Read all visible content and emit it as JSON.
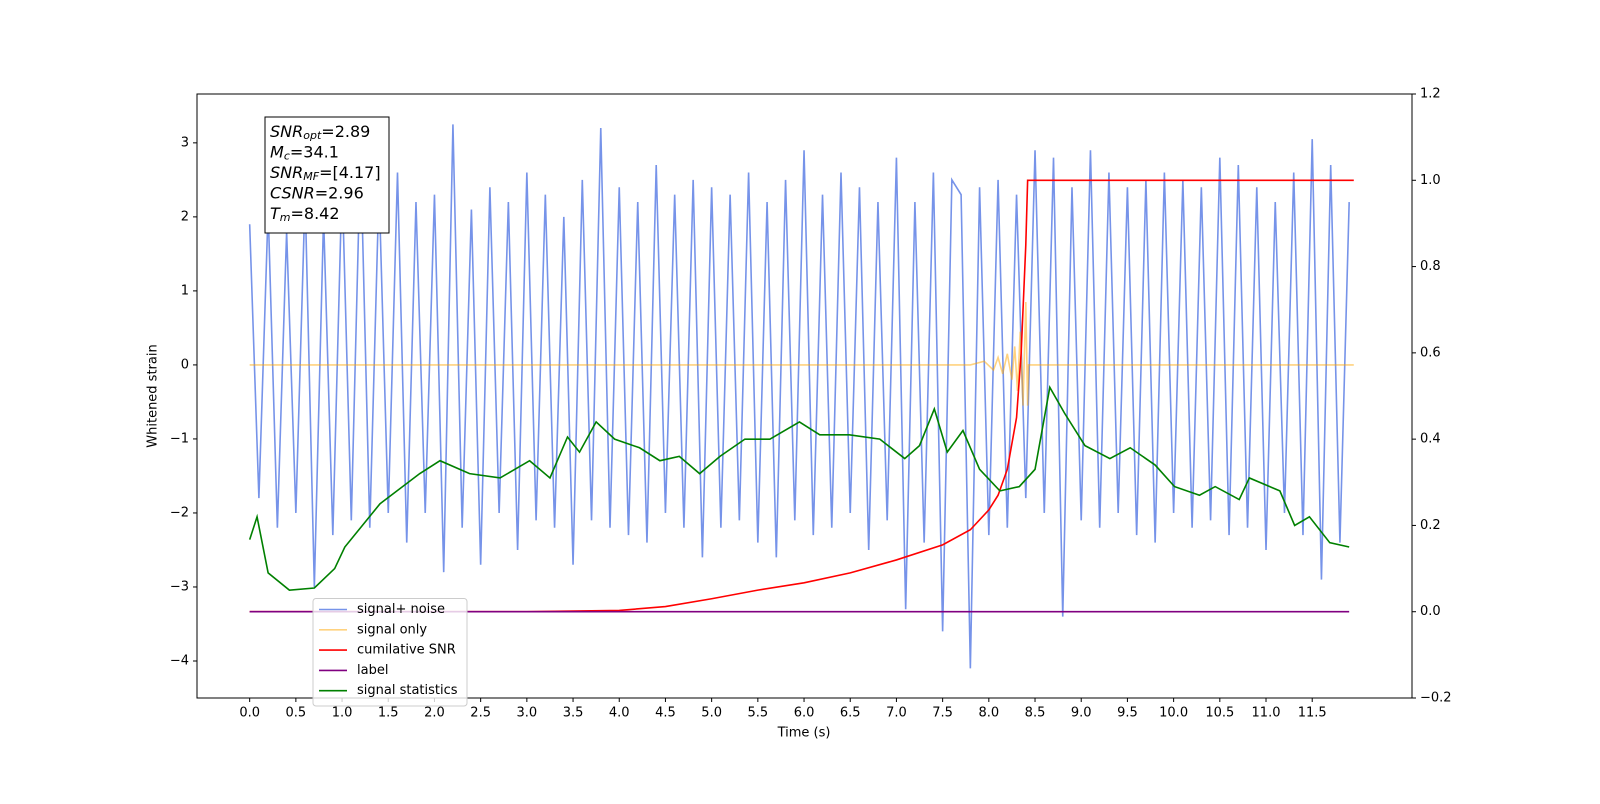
{
  "chart_data": {
    "type": "line",
    "xlabel": "Time (s)",
    "ylabel": "Whitened strain",
    "xlim": [
      -0.57,
      12.58
    ],
    "ylim": [
      -4.5,
      3.66
    ],
    "y2lim": [
      -0.2,
      1.2
    ],
    "xticks": [
      {
        "value": 0,
        "label": "0.0"
      },
      {
        "value": 0.5,
        "label": "0.5"
      },
      {
        "value": 1,
        "label": "1.0"
      },
      {
        "value": 1.5,
        "label": "1.5"
      },
      {
        "value": 2,
        "label": "2.0"
      },
      {
        "value": 2.5,
        "label": "2.5"
      },
      {
        "value": 3,
        "label": "3.0"
      },
      {
        "value": 3.5,
        "label": "3.5"
      },
      {
        "value": 4,
        "label": "4.0"
      },
      {
        "value": 4.5,
        "label": "4.5"
      },
      {
        "value": 5,
        "label": "5.0"
      },
      {
        "value": 5.5,
        "label": "5.5"
      },
      {
        "value": 6,
        "label": "6.0"
      },
      {
        "value": 6.5,
        "label": "6.5"
      },
      {
        "value": 7,
        "label": "7.0"
      },
      {
        "value": 7.5,
        "label": "7.5"
      },
      {
        "value": 8,
        "label": "8.0"
      },
      {
        "value": 8.5,
        "label": "8.5"
      },
      {
        "value": 9,
        "label": "9.0"
      },
      {
        "value": 9.5,
        "label": "9.5"
      },
      {
        "value": 10,
        "label": "10.0"
      },
      {
        "value": 10.5,
        "label": "10.5"
      },
      {
        "value": 11,
        "label": "11.0"
      },
      {
        "value": 11.5,
        "label": "11.5"
      }
    ],
    "yticks": [
      {
        "value": -4,
        "label": "−4"
      },
      {
        "value": -3,
        "label": "−3"
      },
      {
        "value": -2,
        "label": "−2"
      },
      {
        "value": -1,
        "label": "−1"
      },
      0,
      1,
      2,
      3
    ],
    "y2ticks": [
      {
        "value": -0.2,
        "label": "−0.2"
      },
      {
        "value": 0,
        "label": "0.0"
      },
      {
        "value": 0.2,
        "label": "0.2"
      },
      {
        "value": 0.4,
        "label": "0.4"
      },
      {
        "value": 0.6,
        "label": "0.6"
      },
      {
        "value": 0.8,
        "label": "0.8"
      },
      {
        "value": 1,
        "label": "1.0"
      },
      {
        "value": 1.2,
        "label": "1.2"
      }
    ],
    "legend": "lower left",
    "grid": false,
    "annotations": [
      {
        "name": "SNR",
        "sub": "opt",
        "text": "=2.89"
      },
      {
        "name": "M",
        "sub": "c",
        "text": "=34.1"
      },
      {
        "name": "SNR",
        "sub": "MF",
        "text": "=[4.17]"
      },
      {
        "name": "CSNR",
        "sub": "",
        "text": "=2.96"
      },
      {
        "name": "T",
        "sub": "m",
        "text": "=8.42"
      }
    ],
    "series": [
      {
        "name": "signal+ noise",
        "color": "#6f8de8",
        "alpha": 0.95,
        "x": [
          0,
          0.1,
          0.2,
          0.3,
          0.4,
          0.5,
          0.6,
          0.7,
          0.8,
          0.9,
          1,
          1.1,
          1.2,
          1.3,
          1.4,
          1.5,
          1.6,
          1.7,
          1.8,
          1.9,
          2,
          2.1,
          2.2,
          2.3,
          2.4,
          2.5,
          2.6,
          2.7,
          2.8,
          2.9,
          3,
          3.1,
          3.2,
          3.3,
          3.4,
          3.5,
          3.6,
          3.7,
          3.8,
          3.9,
          4,
          4.1,
          4.2,
          4.3,
          4.4,
          4.5,
          4.6,
          4.7,
          4.8,
          4.9,
          5,
          5.1,
          5.2,
          5.3,
          5.4,
          5.5,
          5.6,
          5.7,
          5.8,
          5.9,
          6,
          6.1,
          6.2,
          6.3,
          6.4,
          6.5,
          6.6,
          6.7,
          6.8,
          6.9,
          7,
          7.1,
          7.2,
          7.3,
          7.4,
          7.5,
          7.6,
          7.7,
          7.8,
          7.9,
          8,
          8.1,
          8.2,
          8.3,
          8.4,
          8.5,
          8.6,
          8.7,
          8.8,
          8.9,
          9,
          9.1,
          9.2,
          9.3,
          9.4,
          9.5,
          9.6,
          9.7,
          9.8,
          9.9,
          10,
          10.1,
          10.2,
          10.3,
          10.4,
          10.5,
          10.6,
          10.7,
          10.8,
          10.9,
          11,
          11.1,
          11.2,
          11.3,
          11.4,
          11.5,
          11.6,
          11.7,
          11.8,
          11.9
        ],
        "values": [
          1.9,
          -1.8,
          2.1,
          -2.2,
          1.8,
          -2.0,
          2.3,
          -3.0,
          2.0,
          -2.3,
          2.5,
          -2.1,
          2.9,
          -2.2,
          2.4,
          -2.0,
          2.6,
          -2.4,
          2.2,
          -2.0,
          2.3,
          -2.8,
          3.25,
          -2.2,
          2.1,
          -2.7,
          2.4,
          -2.0,
          2.2,
          -2.5,
          2.6,
          -2.1,
          2.3,
          -2.2,
          2.0,
          -2.7,
          2.5,
          -2.1,
          3.2,
          -2.2,
          2.4,
          -2.3,
          2.2,
          -2.4,
          2.7,
          -2.0,
          2.3,
          -2.2,
          2.5,
          -2.6,
          2.4,
          -2.2,
          2.3,
          -2.1,
          2.6,
          -2.4,
          2.2,
          -2.6,
          2.5,
          -2.1,
          2.9,
          -2.3,
          2.3,
          -2.2,
          2.6,
          -2.0,
          2.4,
          -2.5,
          2.2,
          -2.1,
          2.8,
          -3.3,
          2.2,
          -2.4,
          2.6,
          -3.6,
          2.5,
          2.3,
          -4.1,
          2.4,
          -2.3,
          2.5,
          -2.2,
          2.3,
          -1.8,
          2.9,
          -2.0,
          2.8,
          -3.4,
          2.4,
          -2.1,
          2.9,
          -2.2,
          2.6,
          -2.0,
          2.4,
          -2.3,
          2.5,
          -2.4,
          2.6,
          -2.0,
          2.5,
          -2.2,
          2.4,
          -2.1,
          2.8,
          -2.3,
          2.7,
          -2.2,
          2.4,
          -2.5,
          2.2,
          -2.0,
          2.6,
          -2.3,
          3.05,
          -2.9,
          2.7,
          -2.4,
          2.2
        ]
      },
      {
        "name": "signal only",
        "color": "#ffa500",
        "alpha": 0.5,
        "x": [
          0,
          7.8,
          7.95,
          8.05,
          8.1,
          8.15,
          8.2,
          8.25,
          8.28,
          8.31,
          8.34,
          8.37,
          8.4,
          8.42,
          8.43,
          11.95
        ],
        "values": [
          0,
          0,
          0.05,
          -0.07,
          0.1,
          -0.12,
          0.15,
          -0.2,
          0.25,
          -0.35,
          0.45,
          -0.55,
          0.85,
          -0.55,
          0,
          0
        ]
      },
      {
        "name": "cumilative SNR",
        "color": "#ff0000",
        "alpha": 1,
        "axis": "y2",
        "x": [
          0,
          3,
          4,
          4.5,
          5,
          5.5,
          6,
          6.5,
          7,
          7.5,
          7.8,
          8,
          8.1,
          8.2,
          8.3,
          8.35,
          8.4,
          8.42,
          11.95
        ],
        "values": [
          0,
          0,
          0.003,
          0.012,
          0.03,
          0.05,
          0.067,
          0.09,
          0.12,
          0.155,
          0.19,
          0.236,
          0.27,
          0.33,
          0.45,
          0.6,
          0.85,
          1.0,
          1.0
        ]
      },
      {
        "name": "label",
        "color": "#800080",
        "alpha": 1,
        "axis": "y2",
        "x": [
          0,
          11.9
        ],
        "values": [
          0,
          0
        ]
      },
      {
        "name": "signal statistics",
        "color": "#008000",
        "alpha": 1,
        "axis": "y2",
        "x": [
          0,
          0.08,
          0.2,
          0.43,
          0.7,
          0.92,
          1.03,
          1.41,
          1.84,
          2.06,
          2.38,
          2.71,
          3.03,
          3.25,
          3.44,
          3.57,
          3.75,
          3.95,
          4.22,
          4.44,
          4.65,
          4.87,
          5.09,
          5.36,
          5.63,
          5.95,
          6.17,
          6.49,
          6.82,
          7.09,
          7.25,
          7.41,
          7.55,
          7.72,
          7.9,
          8.12,
          8.33,
          8.5,
          8.66,
          8.82,
          9.04,
          9.31,
          9.53,
          9.8,
          10.01,
          10.28,
          10.45,
          10.71,
          10.82,
          11.15,
          11.31,
          11.47,
          11.69,
          11.9
        ],
        "values": [
          0.167,
          0.22,
          0.09,
          0.05,
          0.055,
          0.1,
          0.15,
          0.25,
          0.32,
          0.35,
          0.32,
          0.31,
          0.35,
          0.31,
          0.405,
          0.37,
          0.44,
          0.4,
          0.38,
          0.35,
          0.36,
          0.32,
          0.36,
          0.4,
          0.4,
          0.44,
          0.41,
          0.41,
          0.4,
          0.355,
          0.385,
          0.47,
          0.37,
          0.42,
          0.33,
          0.28,
          0.29,
          0.33,
          0.52,
          0.46,
          0.385,
          0.355,
          0.38,
          0.34,
          0.29,
          0.27,
          0.29,
          0.26,
          0.31,
          0.28,
          0.2,
          0.22,
          0.16,
          0.15
        ]
      }
    ]
  }
}
